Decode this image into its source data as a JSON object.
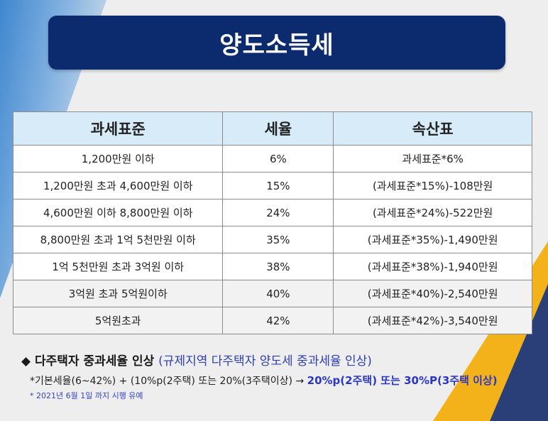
{
  "title": "양도소득세",
  "table": {
    "headers": [
      "과세표준",
      "세율",
      "속산표"
    ],
    "rows": [
      [
        "1,200만원 이하",
        "6%",
        "과세표준*6%"
      ],
      [
        "1,200만원 초과 4,600만원 이하",
        "15%",
        "(과세표준*15%)-108만원"
      ],
      [
        "4,600만원 이하 8,800만원 이하",
        "24%",
        "(과세표준*24%)-522만원"
      ],
      [
        "8,800만원 초과 1억 5천만원 이하",
        "35%",
        "(과세표준*35%)-1,490만원"
      ],
      [
        "1억 5천만원 초과 3억원 이하",
        "38%",
        "(과세표준*38%)-1,940만원"
      ],
      [
        "3억원 초과 5억원이하",
        "40%",
        "(과세표준*40%)-2,540만원"
      ],
      [
        "5억원초과",
        "42%",
        "(과세표준*42%)-3,540만원"
      ]
    ]
  },
  "notes": {
    "bullet": "◆",
    "line1_main": "다주택자 중과세율 인상",
    "line1_highlight": "(규제지역 다주택자 양도세 중과세율 인상)",
    "line2_main": "*기본세율(6~42%) + (10%p(2주택) 또는 20%(3주택이상) →",
    "line2_highlight": "20%p(2주택) 또는 30%P(3주택 이상)",
    "line3": "* 2021년 6월 1일 까지 시행 유예"
  },
  "colors": {
    "title_bg": "#0c2a6e",
    "header_bg": "#d8ebf9",
    "highlight_blue": "#2a36c8",
    "accent_yellow": "#f3b21a"
  }
}
